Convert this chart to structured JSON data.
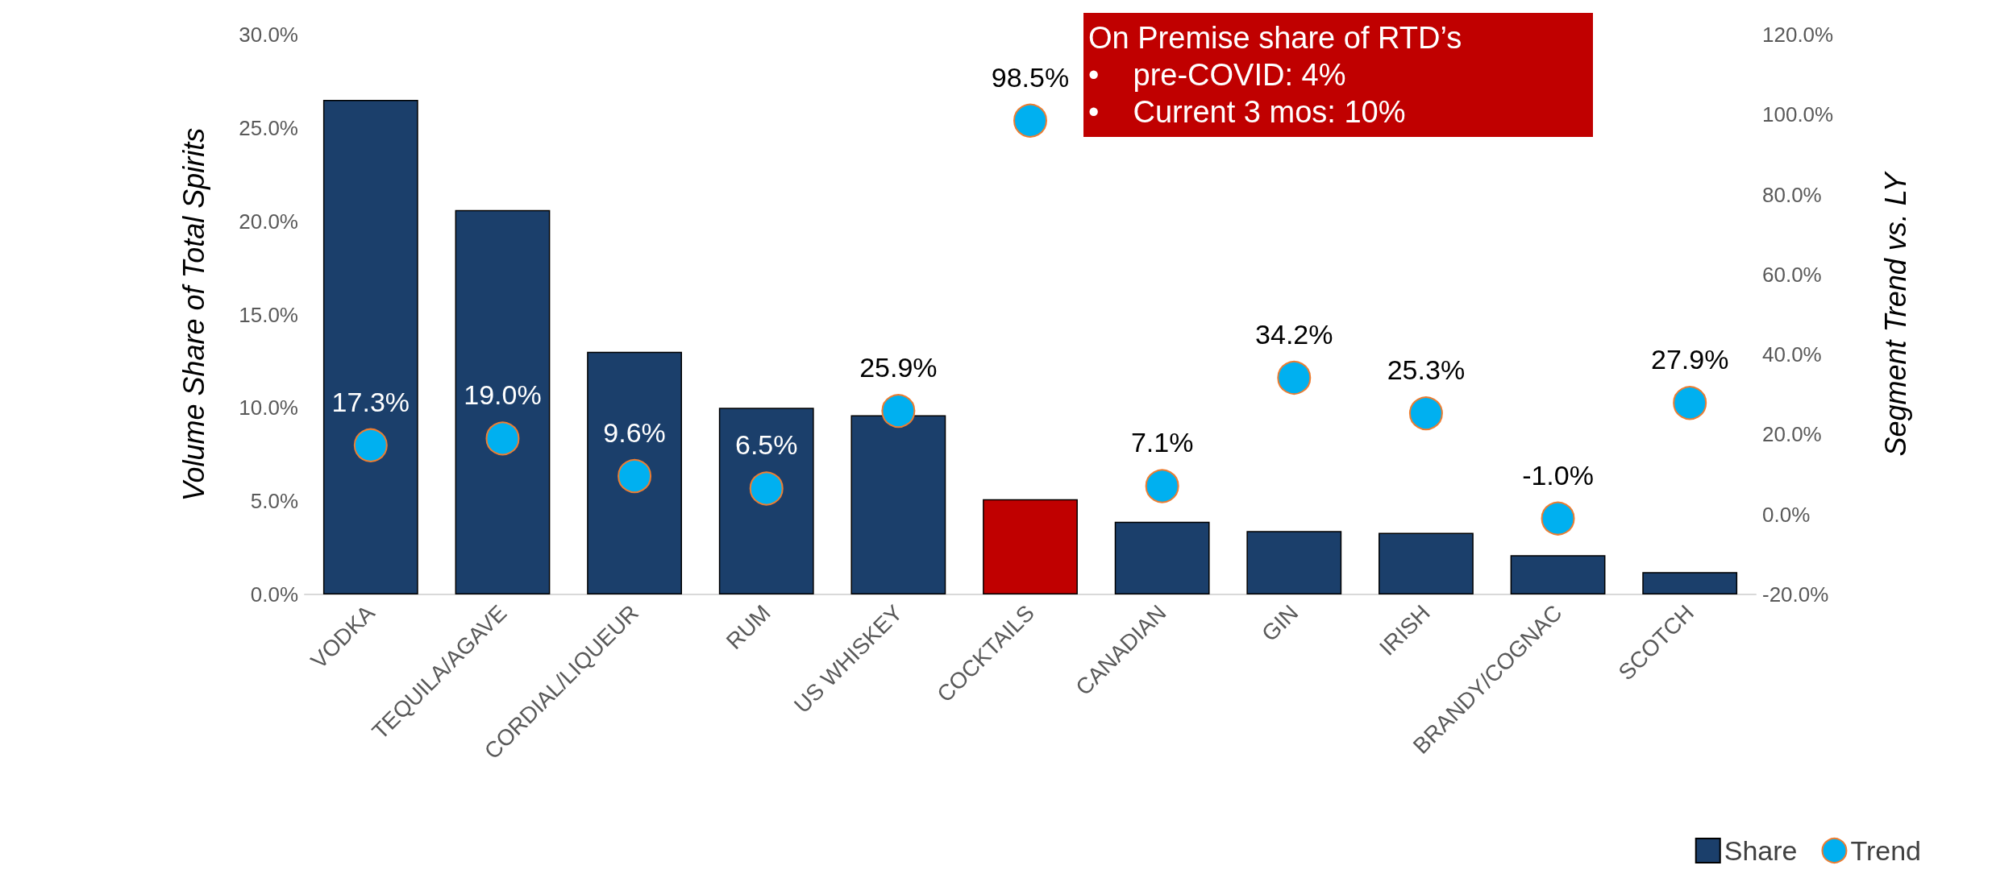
{
  "chart_data": {
    "type": "bar",
    "ylabel": "Volume Share of Total Spirits",
    "y2label": "Segment Trend vs. LY",
    "categories": [
      "VODKA",
      "TEQUILA/AGAVE",
      "CORDIAL/LIQUEUR",
      "RUM",
      "US WHISKEY",
      "COCKTAILS",
      "CANADIAN",
      "GIN",
      "IRISH",
      "BRANDY/COGNAC",
      "SCOTCH"
    ],
    "series": [
      {
        "name": "Share",
        "color": "#1b3f6b",
        "colors": [
          "#1b3f6b",
          "#1b3f6b",
          "#1b3f6b",
          "#1b3f6b",
          "#1b3f6b",
          "#c00000",
          "#1b3f6b",
          "#1b3f6b",
          "#1b3f6b",
          "#1b3f6b",
          "#1b3f6b"
        ],
        "values": [
          26.5,
          20.6,
          13.0,
          10.0,
          9.6,
          5.1,
          3.9,
          3.4,
          3.3,
          2.1,
          1.2
        ]
      },
      {
        "name": "Trend",
        "type": "scatter",
        "axis": "y2",
        "color": "#00b0f0",
        "marker": "circle",
        "values": [
          17.3,
          19.0,
          9.6,
          6.5,
          25.9,
          98.5,
          7.1,
          34.2,
          25.3,
          -1.0,
          27.9
        ],
        "value_labels": [
          "17.3%",
          "19.0%",
          "9.6%",
          "6.5%",
          "25.9%",
          "98.5%",
          "7.1%",
          "34.2%",
          "25.3%",
          "-1.0%",
          "27.9%"
        ]
      }
    ],
    "ylim": [
      0,
      30
    ],
    "yticks": [
      {
        "value": 0,
        "label": "0.0%"
      },
      {
        "value": 5,
        "label": "5.0%"
      },
      {
        "value": 10,
        "label": "10.0%"
      },
      {
        "value": 15,
        "label": "15.0%"
      },
      {
        "value": 20,
        "label": "20.0%"
      },
      {
        "value": 25,
        "label": "25.0%"
      },
      {
        "value": 30,
        "label": "30.0%"
      }
    ],
    "y2lim": [
      -20,
      120
    ],
    "y2ticks": [
      {
        "value": -20,
        "label": "-20.0%"
      },
      {
        "value": 0,
        "label": "0.0%"
      },
      {
        "value": 20,
        "label": "20.0%"
      },
      {
        "value": 40,
        "label": "40.0%"
      },
      {
        "value": 60,
        "label": "60.0%"
      },
      {
        "value": 80,
        "label": "80.0%"
      },
      {
        "value": 100,
        "label": "100.0%"
      },
      {
        "value": 120,
        "label": "120.0%"
      }
    ],
    "annotations": [
      "On Premise share of RTD’s",
      "•    pre-COVID: 4%",
      "•    Current 3 mos: 10%"
    ],
    "grid": false,
    "legend": "bottom right"
  }
}
